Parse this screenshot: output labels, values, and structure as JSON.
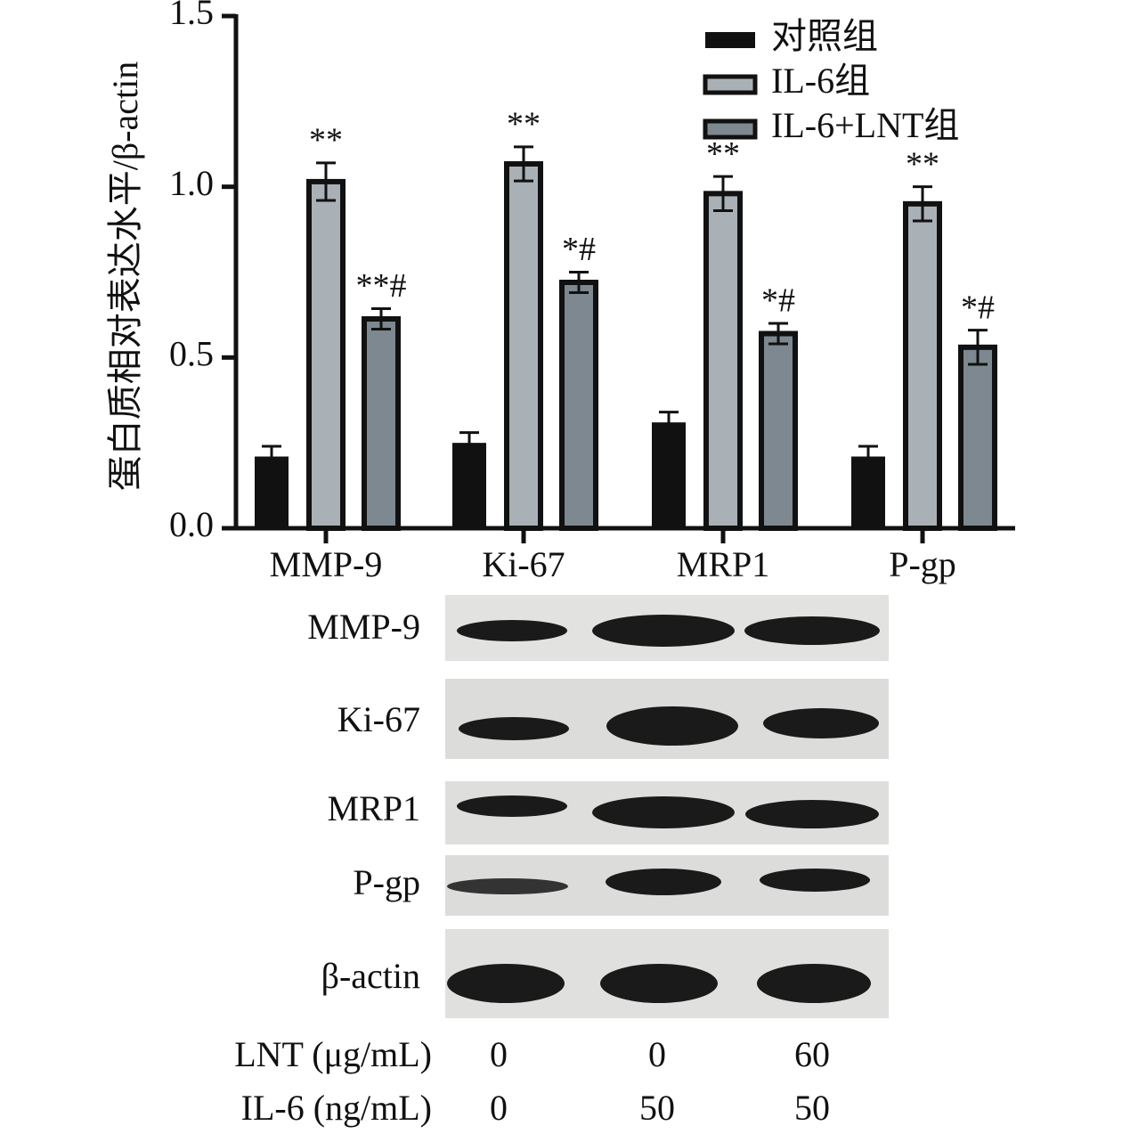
{
  "chart_data": {
    "type": "bar",
    "ylabel": "蛋白质相对表达水平/β-actin",
    "categories": [
      "MMP-9",
      "Ki-67",
      "MRP1",
      "P-gp"
    ],
    "ylim": [
      0,
      1.5
    ],
    "yticks": [
      {
        "value": 0,
        "label": "0.0"
      },
      {
        "value": 0.5,
        "label": "0.5"
      },
      {
        "value": 1,
        "label": "1.0"
      },
      {
        "value": 1.5,
        "label": "1.5"
      }
    ],
    "legend": "top-right",
    "series": [
      {
        "name": "对照组",
        "color": "#111111",
        "values": [
          0.21,
          0.25,
          0.31,
          0.21
        ],
        "errors": [
          0.03,
          0.03,
          0.03,
          0.03
        ]
      },
      {
        "name": "IL-6组",
        "color": "#a9b0b6",
        "values": [
          1.015,
          1.067,
          0.98,
          0.95
        ],
        "errors": [
          0.055,
          0.05,
          0.05,
          0.05
        ],
        "annotations": [
          "**",
          "**",
          "**",
          "**"
        ]
      },
      {
        "name": "IL-6+LNT组",
        "color": "#7d8890",
        "values": [
          0.613,
          0.72,
          0.57,
          0.53
        ],
        "errors": [
          0.03,
          0.03,
          0.03,
          0.05
        ],
        "annotations": [
          "**#",
          "*#",
          "*#",
          "*#"
        ]
      }
    ]
  },
  "blot": {
    "rows": [
      "MMP-9",
      "Ki-67",
      "MRP1",
      "P-gp",
      "β-actin"
    ],
    "conditions": [
      {
        "label": "LNT (μg/mL)",
        "values": [
          0,
          0,
          60
        ]
      },
      {
        "label": "IL-6 (ng/mL)",
        "values": [
          0,
          50,
          50
        ]
      }
    ]
  }
}
